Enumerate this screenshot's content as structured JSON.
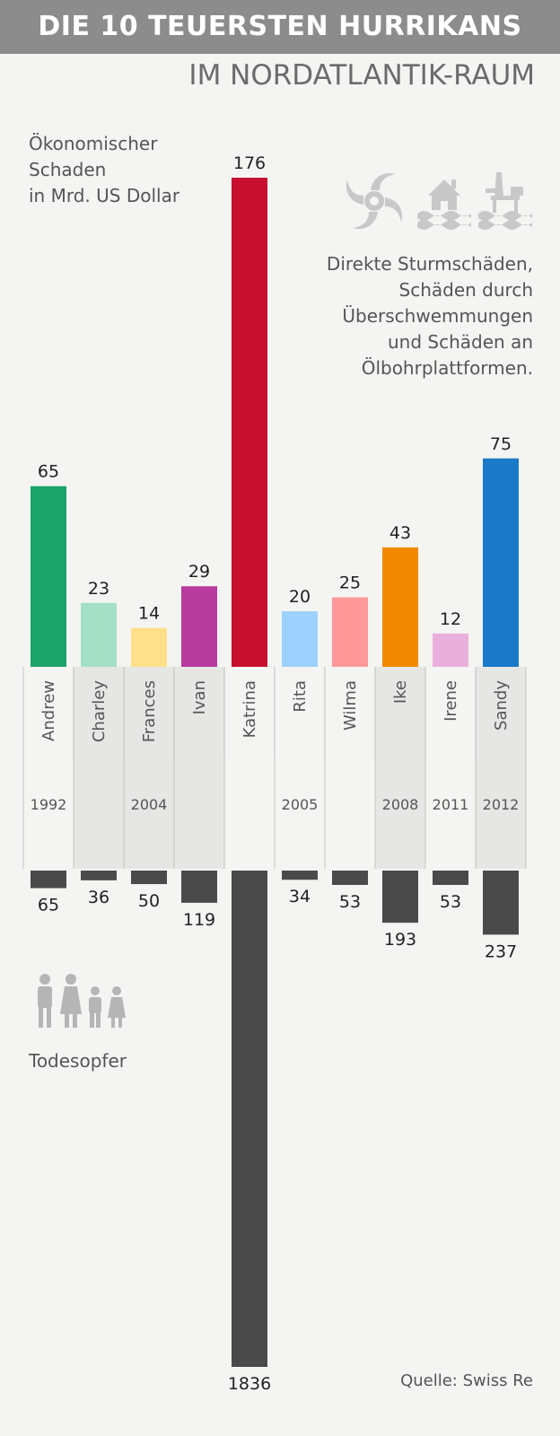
{
  "title": "DIE 10 TEUERSTEN HURRIKANS",
  "subtitle": "IM NORDATLANTIK-RAUM",
  "ylabel_top": [
    "Ökonomischer",
    "Schaden",
    "in Mrd. US Dollar"
  ],
  "legend_text": [
    "Direkte Sturmschäden,",
    "Schäden durch",
    "Überschwemmungen",
    "und Schäden an",
    "Ölbohrplattformen."
  ],
  "ylabel_bottom": "Todesopfer",
  "source": "Quelle: Swiss Re",
  "icons": [
    "hurricane-icon",
    "flooded-house-icon",
    "oil-platform-icon",
    "people-icon"
  ],
  "chart_data": {
    "type": "bar",
    "categories": [
      "Andrew",
      "Charley",
      "Frances",
      "Ivan",
      "Katrina",
      "Rita",
      "Wilma",
      "Ike",
      "Irene",
      "Sandy"
    ],
    "series": [
      {
        "name": "Ökonomischer Schaden in Mrd. US Dollar",
        "values": [
          65,
          23,
          14,
          29,
          176,
          20,
          25,
          43,
          12,
          75
        ],
        "colors": [
          "#1ba36a",
          "#a3e0c6",
          "#ffe08a",
          "#b83b9e",
          "#c8102e",
          "#9dd1ff",
          "#ff9999",
          "#f18a00",
          "#eab0dc",
          "#1b7ac7"
        ]
      },
      {
        "name": "Todesopfer",
        "values": [
          65,
          36,
          50,
          119,
          1836,
          34,
          53,
          193,
          53,
          237
        ],
        "color": "#4a4a4a"
      }
    ],
    "years": [
      {
        "label": "1992",
        "categories": [
          "Andrew"
        ]
      },
      {
        "label": "2004",
        "categories": [
          "Charley",
          "Frances",
          "Ivan"
        ]
      },
      {
        "label": "2005",
        "categories": [
          "Katrina",
          "Rita",
          "Wilma"
        ]
      },
      {
        "label": "2008",
        "categories": [
          "Ike"
        ]
      },
      {
        "label": "2011",
        "categories": [
          "Irene"
        ]
      },
      {
        "label": "2012",
        "categories": [
          "Sandy"
        ]
      }
    ],
    "year_band_fill": {
      "1992": false,
      "2004": true,
      "2005": false,
      "2008": true,
      "2011": false,
      "2012": true
    },
    "band_color": "#e6e6e4"
  }
}
